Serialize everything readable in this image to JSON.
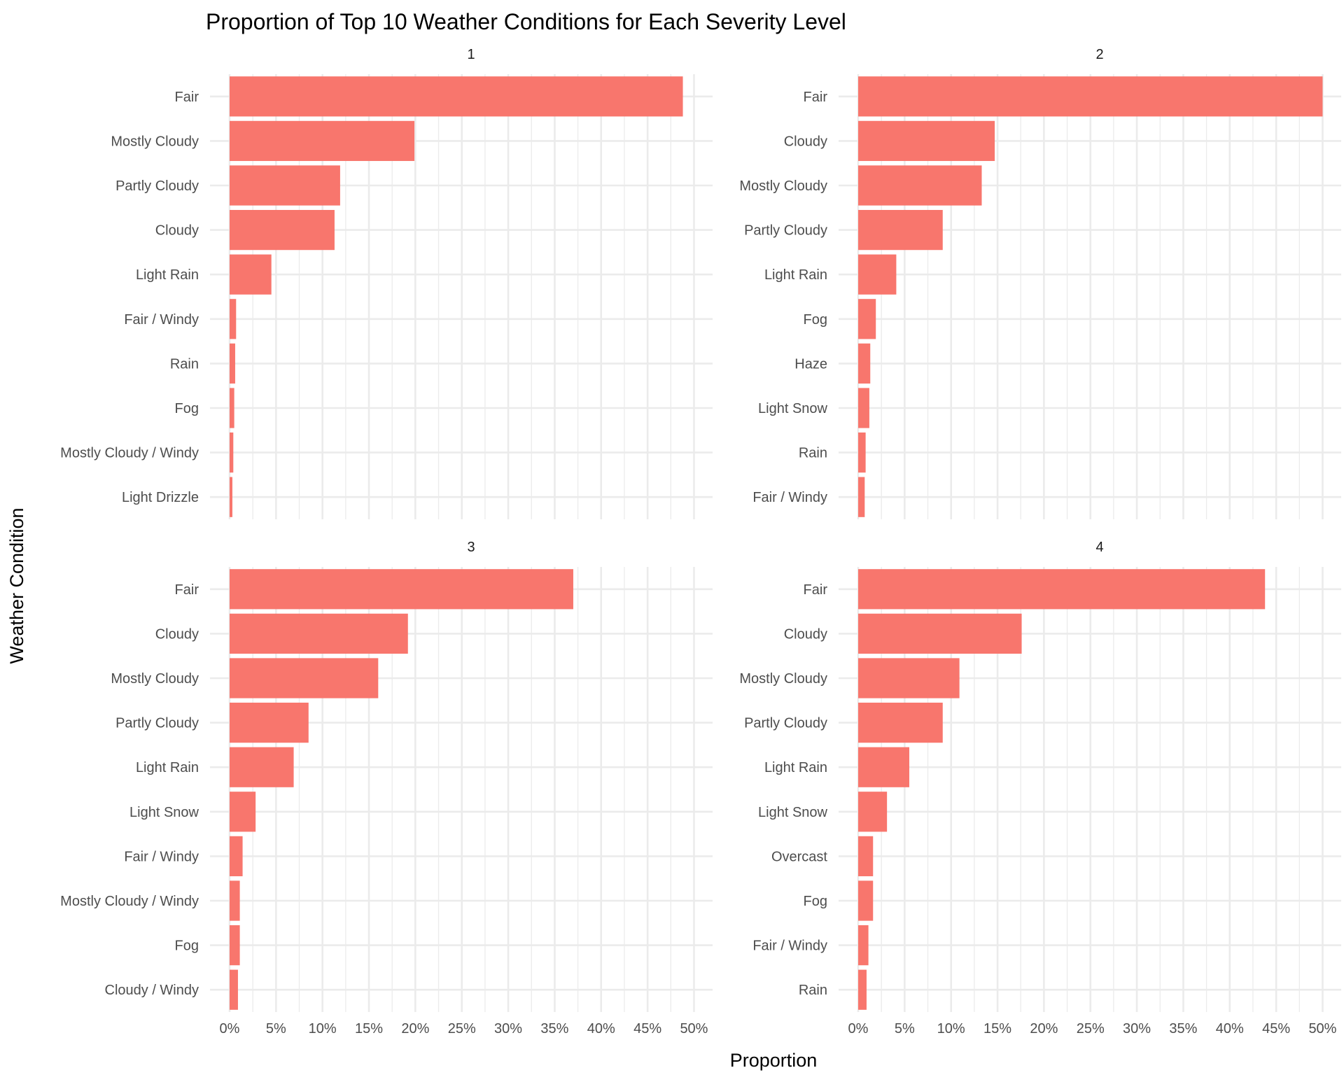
{
  "chart_data": {
    "type": "bar",
    "orientation": "horizontal",
    "title": "Proportion of Top 10 Weather Conditions for Each Severity Level",
    "xlabel": "Proportion",
    "ylabel": "Weather Condition",
    "xlim": [
      0,
      0.52
    ],
    "x_ticks": [
      "0%",
      "5%",
      "10%",
      "15%",
      "20%",
      "25%",
      "30%",
      "35%",
      "40%",
      "45%",
      "50%"
    ],
    "grid": true,
    "bar_color": "#F8766D",
    "facets": [
      {
        "label": "1",
        "categories": [
          "Fair",
          "Mostly Cloudy",
          "Partly Cloudy",
          "Cloudy",
          "Light Rain",
          "Fair / Windy",
          "Rain",
          "Fog",
          "Mostly Cloudy / Windy",
          "Light Drizzle"
        ],
        "values": [
          0.488,
          0.199,
          0.119,
          0.113,
          0.045,
          0.007,
          0.006,
          0.005,
          0.004,
          0.003
        ]
      },
      {
        "label": "2",
        "categories": [
          "Fair",
          "Cloudy",
          "Mostly Cloudy",
          "Partly Cloudy",
          "Light Rain",
          "Fog",
          "Haze",
          "Light Snow",
          "Rain",
          "Fair / Windy"
        ],
        "values": [
          0.5,
          0.147,
          0.133,
          0.091,
          0.041,
          0.019,
          0.013,
          0.012,
          0.008,
          0.007
        ]
      },
      {
        "label": "3",
        "categories": [
          "Fair",
          "Cloudy",
          "Mostly Cloudy",
          "Partly Cloudy",
          "Light Rain",
          "Light Snow",
          "Fair / Windy",
          "Mostly Cloudy / Windy",
          "Fog",
          "Cloudy / Windy"
        ],
        "values": [
          0.37,
          0.192,
          0.16,
          0.085,
          0.069,
          0.028,
          0.014,
          0.011,
          0.011,
          0.009
        ]
      },
      {
        "label": "4",
        "categories": [
          "Fair",
          "Cloudy",
          "Mostly Cloudy",
          "Partly Cloudy",
          "Light Rain",
          "Light Snow",
          "Overcast",
          "Fog",
          "Fair / Windy",
          "Rain"
        ],
        "values": [
          0.438,
          0.176,
          0.109,
          0.091,
          0.055,
          0.031,
          0.016,
          0.016,
          0.011,
          0.009
        ]
      }
    ]
  }
}
